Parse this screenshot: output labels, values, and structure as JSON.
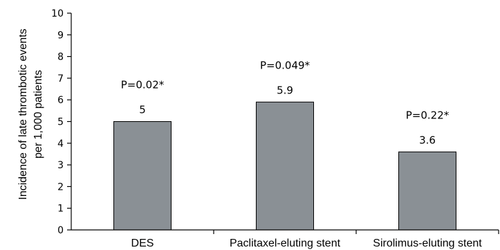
{
  "chart_data": {
    "type": "bar",
    "title": "",
    "xlabel": "",
    "ylabel_lines": [
      "Incidence of late thrombotic events",
      "per 1,000 patients"
    ],
    "ylim": [
      0,
      10
    ],
    "yticks": [
      "0",
      "1",
      "2",
      "3",
      "4",
      "5",
      "6",
      "7",
      "8",
      "9",
      "10"
    ],
    "categories": [
      "DES",
      "Paclitaxel-eluting stent",
      "Sirolimus-eluting stent"
    ],
    "values": [
      5,
      5.9,
      3.6
    ],
    "value_labels": [
      "5",
      "5.9",
      "3.6"
    ],
    "annotations": [
      "P=0.02*",
      "P=0.049*",
      "P=0.22*"
    ],
    "grid": false,
    "legend": "none",
    "bar_color": "#8a9095",
    "bar_edge_color": "#000000",
    "axis_color": "#000000"
  }
}
